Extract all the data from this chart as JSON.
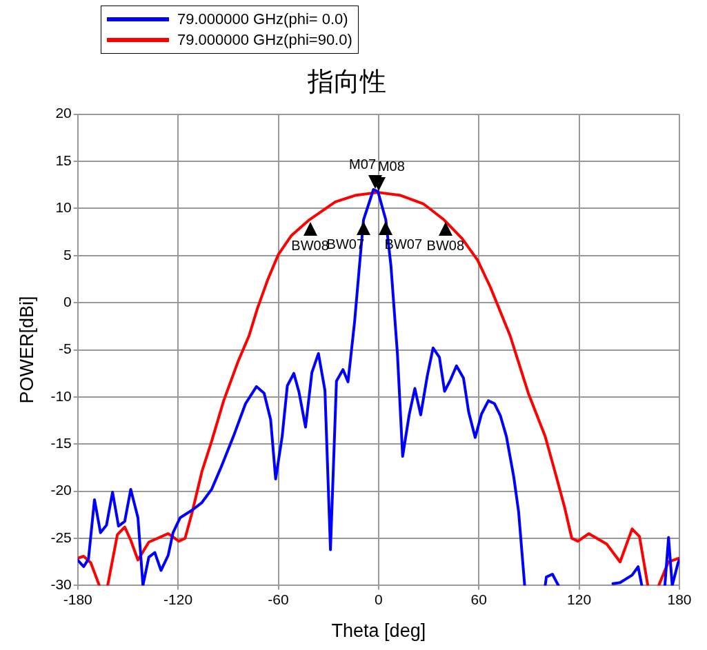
{
  "chart_data": {
    "type": "line",
    "title": "指向性",
    "xlabel": "Theta [deg]",
    "ylabel": "POWER[dBi]",
    "xlim": [
      -180,
      180
    ],
    "xticks": [
      -180,
      -120,
      -60,
      0,
      60,
      120,
      180
    ],
    "ylim": [
      -30,
      20
    ],
    "yticks": [
      -30,
      -25,
      -20,
      -15,
      -10,
      -5,
      0,
      5,
      10,
      15,
      20
    ],
    "grid": true,
    "legend": "top left",
    "marker": "none",
    "line_style": "solid",
    "series": [
      {
        "name": "79.000000 GHz(phi= 0.0)",
        "color": "#0000ff",
        "x": [
          -180,
          -176.5,
          -173.6,
          -170,
          -166.4,
          -162.8,
          -159.2,
          -155.6,
          -151.9,
          -148.3,
          -144,
          -141,
          -137.5,
          -133.9,
          -130.2,
          -125.9,
          -123,
          -118.7,
          -111.5,
          -105.7,
          -99.9,
          -94.1,
          -86.9,
          -79.6,
          -73.1,
          -68.5,
          -64.6,
          -61.6,
          -57.7,
          -54.6,
          -50.7,
          -47.6,
          -43.7,
          -39.9,
          -36,
          -32.1,
          -28.8,
          -25.2,
          -21.3,
          -18.3,
          -14.4,
          -11.3,
          -9,
          -3.1,
          -0.4,
          4.3,
          7.4,
          11.3,
          14.4,
          18.3,
          21.7,
          25.2,
          29.1,
          32.6,
          36.4,
          39.5,
          43,
          46.6,
          50.8,
          53.9,
          57.8,
          61.6,
          65.7,
          69.3,
          72.9,
          76.5,
          80.9,
          83.8,
          87.4,
          93,
          99.7,
          100.4,
          104,
          107.6,
          125,
          140.2,
          144.5,
          151.7,
          155.3,
          157.5,
          165,
          171.3,
          173.5,
          175.7,
          179.2,
          180
        ],
        "values": [
          -27.3,
          -28,
          -27.2,
          -20.9,
          -24.4,
          -23.6,
          -20.1,
          -23.7,
          -23.2,
          -19.8,
          -22.8,
          -30,
          -27,
          -26.5,
          -28.4,
          -26.8,
          -24.4,
          -22.8,
          -22,
          -21.2,
          -19.8,
          -17.4,
          -14.2,
          -10.7,
          -8.9,
          -9.6,
          -12.4,
          -18.7,
          -14.2,
          -8.8,
          -7.5,
          -9.5,
          -13.2,
          -7.4,
          -5.4,
          -9.3,
          -26.2,
          -8.3,
          -7.1,
          -8.4,
          -2.1,
          4.2,
          8.8,
          12,
          11.8,
          8.8,
          3.9,
          -5.5,
          -16.3,
          -11.9,
          -9.1,
          -11.9,
          -7.8,
          -4.8,
          -5.8,
          -9.4,
          -8.2,
          -6.7,
          -8,
          -11.6,
          -14.3,
          -11.8,
          -10.4,
          -10.7,
          -12,
          -14.2,
          -18.5,
          -22.2,
          -30,
          null,
          -30,
          -29.1,
          -28.8,
          -30,
          null,
          -29.8,
          -29.7,
          -28.9,
          -28,
          -30,
          null,
          -30,
          -24.9,
          -30,
          -27.6,
          -27.3
        ]
      },
      {
        "name": "79.000000 GHz(phi=90.0)",
        "color": "#ff0000",
        "x": [
          -180,
          -176.5,
          -172.2,
          -167.1,
          -164.5,
          -162.1,
          -156.3,
          -151.9,
          -148.3,
          -144,
          -137.5,
          -125.9,
          -119.5,
          -115.8,
          -111.5,
          -105.7,
          -99.9,
          -92.7,
          -84,
          -77.5,
          -72.5,
          -66.2,
          -60,
          -52.3,
          -41.4,
          -25.9,
          -13.5,
          -0.4,
          12.7,
          26.7,
          39.1,
          50,
          59.3,
          67,
          78.7,
          89.6,
          99.7,
          105.5,
          111.3,
          115.6,
          119.3,
          125.8,
          136.5,
          144.5,
          151.7,
          156.1,
          161.1,
          164.5,
          167.6,
          173.4,
          180
        ],
        "values": [
          -27.1,
          -26.9,
          -27.6,
          -30,
          null,
          -30,
          -24.6,
          -23.8,
          -25.2,
          -27.3,
          -25.4,
          -24.5,
          -25.3,
          -25,
          -22.2,
          -17.9,
          -14.7,
          -10.4,
          -6.2,
          -3.5,
          -0.6,
          2.5,
          5.1,
          7.1,
          8.8,
          10.7,
          11.4,
          11.7,
          11.4,
          10.5,
          8.8,
          6.8,
          4.5,
          1.6,
          -3.5,
          -9.6,
          -14.2,
          -17.9,
          -21.7,
          -25,
          -25.3,
          -24.5,
          -25.6,
          -27.5,
          -24,
          -24.8,
          -30,
          null,
          -30,
          -27.5,
          -27.1
        ]
      }
    ],
    "annotations": [
      {
        "text": "M07",
        "x": -2,
        "y": 11.9
      },
      {
        "text": "M08",
        "x": 0,
        "y": 11.7
      },
      {
        "text": "BW08",
        "x": -41,
        "y": 8.7
      },
      {
        "text": "BW07",
        "x": -9,
        "y": 8.8
      },
      {
        "text": "BW07",
        "x": 4,
        "y": 8.8
      },
      {
        "text": "BW08",
        "x": 40,
        "y": 8.7
      }
    ]
  }
}
